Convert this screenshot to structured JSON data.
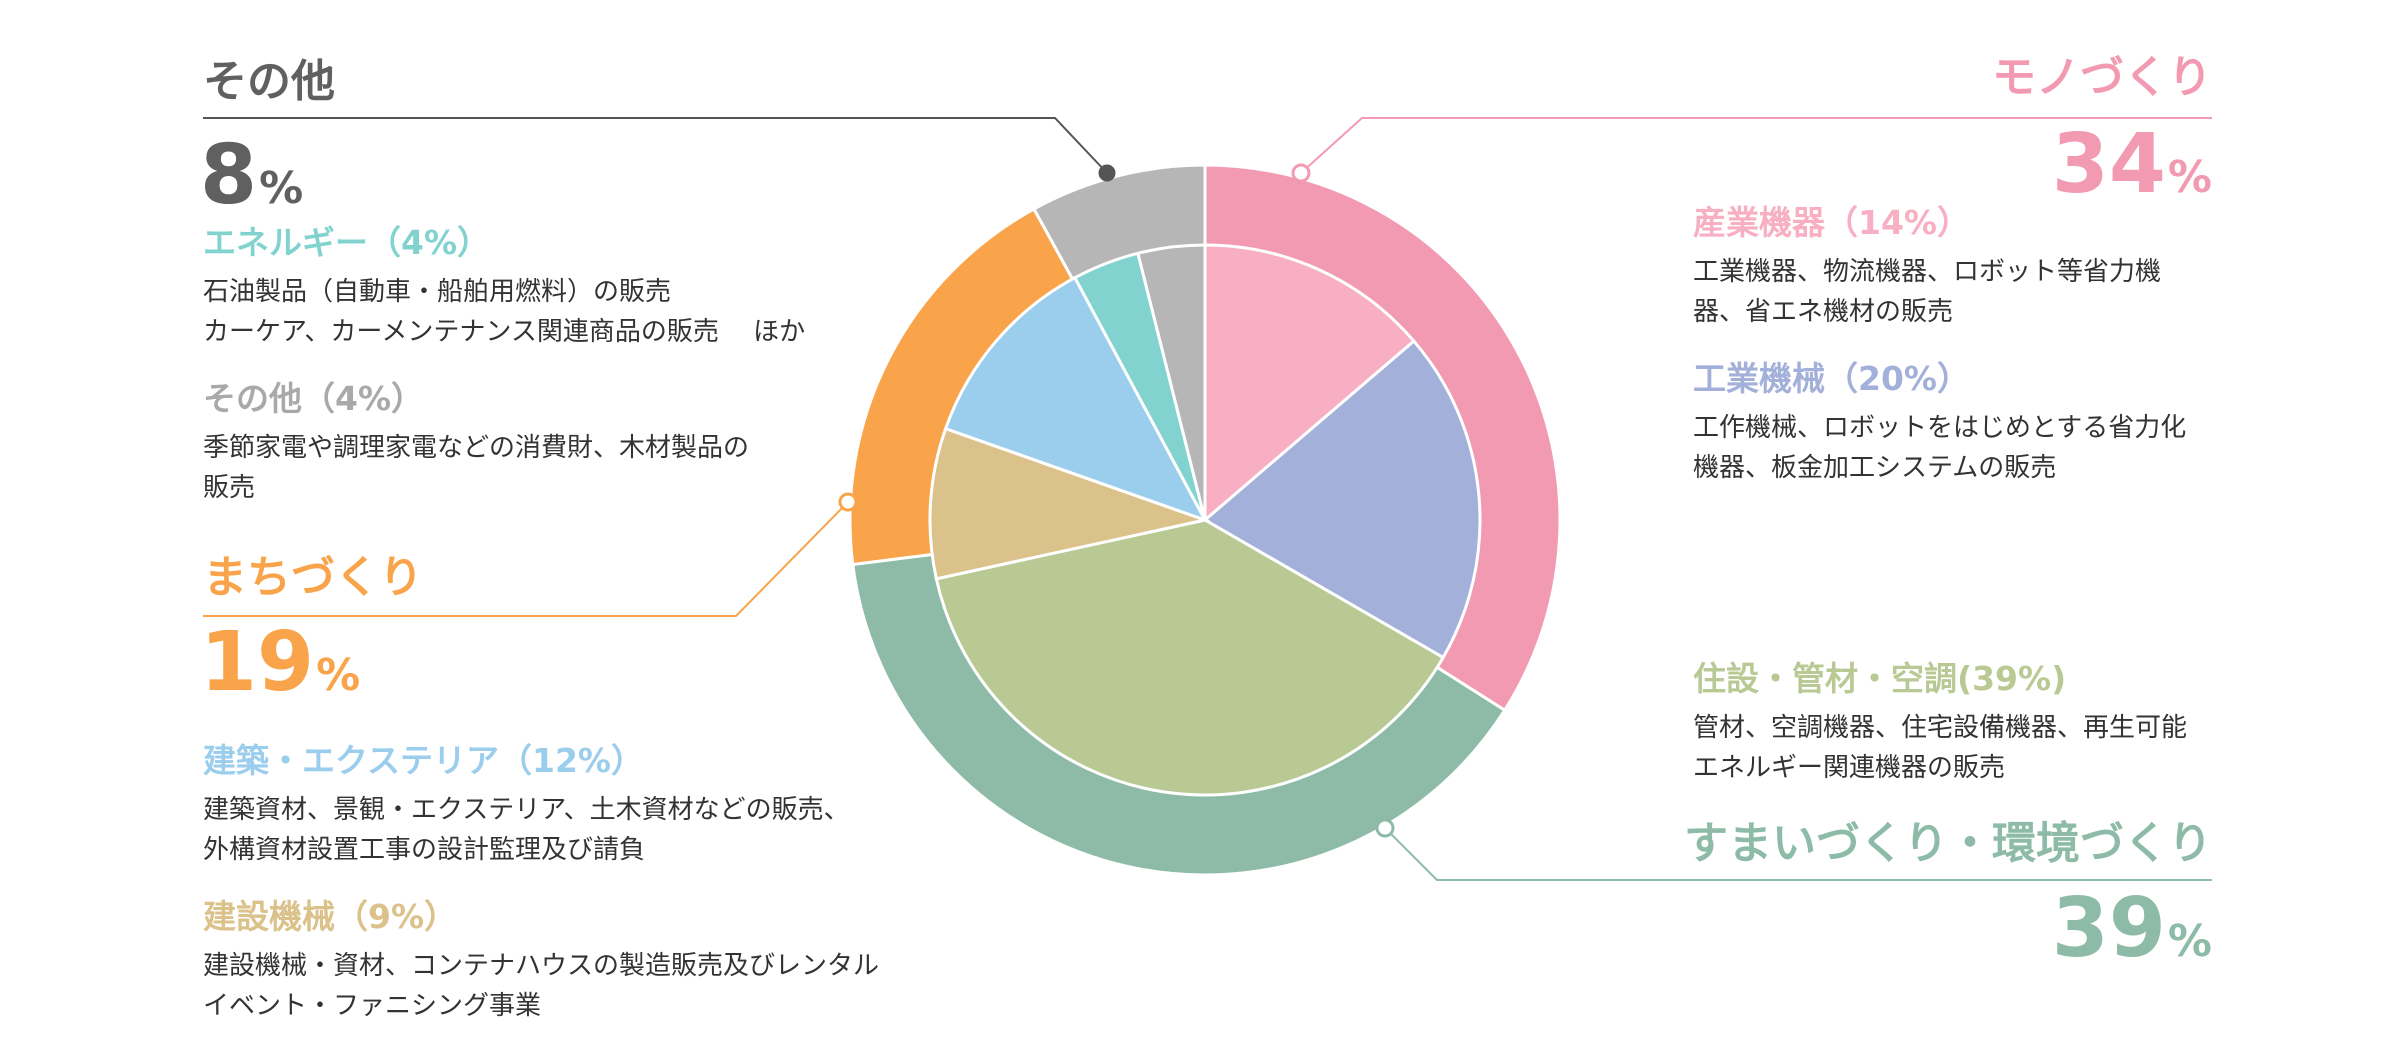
{
  "colors": {
    "monozukuri": "#F39AB3",
    "sangyo_kiki": "#F8AFC4",
    "kogyo_kikai": "#A3B1DA",
    "sumai": "#8EBBA8",
    "jusetsu": "#B8C994",
    "machizukuri": "#F9A44A",
    "kensetsu_kikai": "#DBC18A",
    "kenchiku": "#9BCDED",
    "energy": "#82D3CF",
    "other": "#B6B6B6",
    "other_title": "#606060",
    "sub_other": "#A9A9A9"
  },
  "groups": {
    "mono": {
      "title": "モノづくり",
      "pct": "34",
      "unit": "%"
    },
    "sumai": {
      "title": "すまいづくり・環境づくり",
      "pct": "39",
      "unit": "%"
    },
    "machi": {
      "title": "まちづくり",
      "pct": "19",
      "unit": "%"
    },
    "other": {
      "title": "その他",
      "pct": "8",
      "unit": "%"
    }
  },
  "subs": {
    "sangyo": {
      "title": "産業機器（14%）",
      "desc": "工業機器、物流機器、ロボット等省力機\n器、省エネ機材の販売"
    },
    "kogyo": {
      "title": "工業機械（20%）",
      "desc": "工作機械、ロボットをはじめとする省力化\n機器、板金加工システムの販売"
    },
    "jusetsu": {
      "title": "住設・管材・空調(39%)",
      "desc": "管材、空調機器、住宅設備機器、再生可能\nエネルギー関連機器の販売"
    },
    "kenchiku": {
      "title": "建築・エクステリア（12%）",
      "desc": "建築資材、景観・エクステリア、土木資材などの販売、\n外構資材設置工事の設計監理及び請負"
    },
    "kensetsu": {
      "title": "建設機械（9%）",
      "desc": "建設機械・資材、コンテナハウスの製造販売及びレンタル\nイベント・ファニシング事業"
    },
    "energy": {
      "title": "エネルギー（4%）",
      "desc": "石油製品（自動車・船舶用燃料）の販売\nカーケア、カーメンテナンス関連商品の販売　 ほか"
    },
    "sonota": {
      "title": "その他（4%）",
      "desc": "季節家電や調理家電などの消費財、木材製品の\n販売"
    }
  },
  "chart_data": {
    "type": "pie",
    "title": "",
    "outer": [
      {
        "name": "モノづくり",
        "value": 34
      },
      {
        "name": "すまいづくり・環境づくり",
        "value": 39
      },
      {
        "name": "まちづくり",
        "value": 19
      },
      {
        "name": "その他",
        "value": 8
      }
    ],
    "inner": [
      {
        "name": "産業機器",
        "value": 14
      },
      {
        "name": "工業機械",
        "value": 20
      },
      {
        "name": "住設・管材・空調",
        "value": 39
      },
      {
        "name": "建設機械",
        "value": 9
      },
      {
        "name": "建築・エクステリア",
        "value": 12
      },
      {
        "name": "エネルギー",
        "value": 4
      },
      {
        "name": "その他",
        "value": 4
      }
    ]
  }
}
